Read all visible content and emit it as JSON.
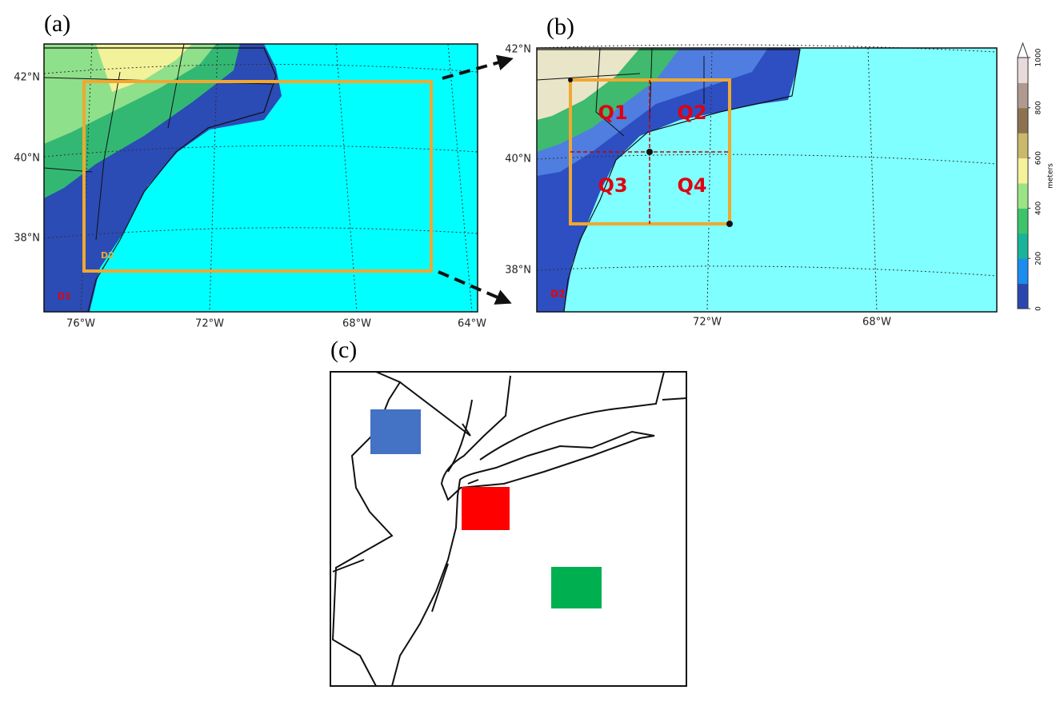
{
  "panels": {
    "a": {
      "label": "(a)",
      "lat_labels": [
        "42°N",
        "40°N",
        "38°N"
      ],
      "lon_labels": [
        "76°W",
        "72°W",
        "68°W",
        "64°W"
      ],
      "domains": [
        "D2",
        "D1"
      ]
    },
    "b": {
      "label": "(b)",
      "lat_labels": [
        "42°N",
        "40°N",
        "38°N"
      ],
      "lon_labels": [
        "72°W",
        "68°W"
      ],
      "quadrants": [
        "Q1",
        "Q2",
        "Q3",
        "Q4"
      ],
      "domain": "D2",
      "colorbar": {
        "lim": [
          0,
          1000
        ],
        "ticks": [
          0,
          200,
          400,
          600,
          800,
          1000
        ],
        "label": "meters",
        "colors": [
          "#2a47b0",
          "#1b8cf0",
          "#18b49a",
          "#3cc46a",
          "#9be486",
          "#f4f29a",
          "#c9b96a",
          "#8e7250",
          "#b09a90",
          "#e8dada"
        ]
      }
    },
    "c": {
      "label": "(c)"
    }
  }
}
